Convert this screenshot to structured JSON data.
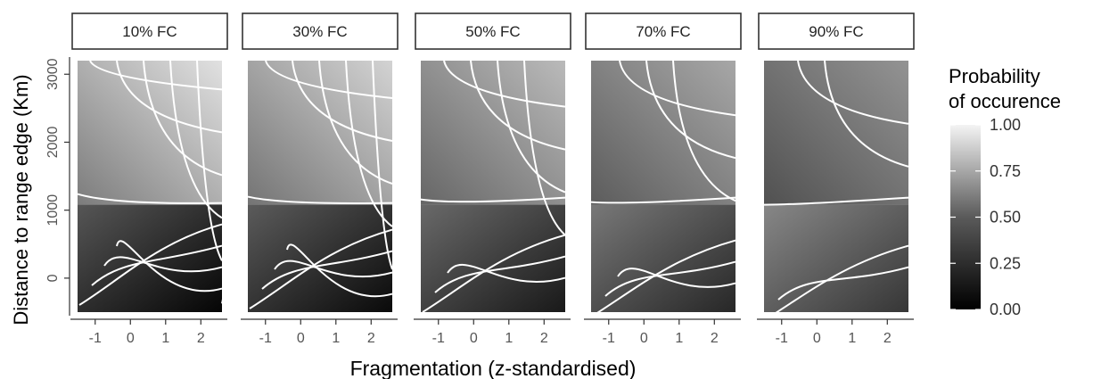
{
  "chart_data": {
    "type": "heatmap",
    "title": "",
    "xlabel": "Fragmentation (z-standardised)",
    "ylabel": "Distance to range edge (Km)",
    "xlim": [
      -1.5,
      2.6
    ],
    "ylim": [
      -500,
      3200
    ],
    "x_ticks": [
      -1,
      0,
      1,
      2
    ],
    "x_tick_labels": [
      "-1",
      "0",
      "1",
      "2"
    ],
    "y_ticks": [
      0,
      1000,
      2000,
      3000
    ],
    "y_tick_labels": [
      "0",
      "1000",
      "2000",
      "3000"
    ],
    "grid": false,
    "legend": {
      "title_lines": [
        "Probability",
        "of occurence"
      ],
      "position": "right",
      "scale": "grey",
      "range": [
        0,
        1
      ],
      "ticks": [
        1.0,
        0.75,
        0.5,
        0.25,
        0.0
      ],
      "tick_labels": [
        "1.00",
        "0.75",
        "0.50",
        "0.25",
        "0.00"
      ]
    },
    "facets": [
      {
        "label": "10% FC",
        "breakpoint_km": 1080,
        "prob_low": 0.02,
        "prob_high": 0.92,
        "split_x": -1.5
      },
      {
        "label": "30% FC",
        "breakpoint_km": 1080,
        "prob_low": 0.04,
        "prob_high": 0.86,
        "split_x": -1.5
      },
      {
        "label": "50% FC",
        "breakpoint_km": 1080,
        "prob_low": 0.1,
        "prob_high": 0.76,
        "split_x": -1.5
      },
      {
        "label": "70% FC",
        "breakpoint_km": 1080,
        "prob_low": 0.16,
        "prob_high": 0.68,
        "split_x": -1.5
      },
      {
        "label": "90% FC",
        "breakpoint_km": 1080,
        "prob_low": 0.22,
        "prob_high": 0.6,
        "split_x": -1.5
      }
    ]
  }
}
